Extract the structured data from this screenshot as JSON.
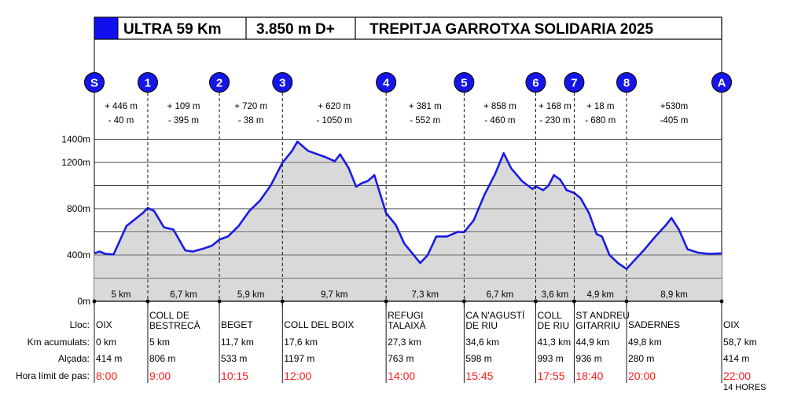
{
  "title_bar": {
    "race": "ULTRA 59 Km",
    "elevation": "3.850 m D+",
    "event": "TREPITJA GARROTXA SOLIDARIA  2025",
    "swatch_color": "#0f0ff0"
  },
  "chart_data": {
    "type": "area",
    "ylabel_ticks": [
      "1400m",
      "1200m",
      "800m",
      "400m",
      "0m"
    ],
    "ylim": [
      0,
      1400
    ],
    "xlim": [
      0,
      58.7
    ],
    "line_color": "#1a1ae6",
    "fill_color": "#d9d9d9",
    "profile": [
      [
        0,
        414
      ],
      [
        0.5,
        430
      ],
      [
        1.0,
        410
      ],
      [
        1.8,
        405
      ],
      [
        3.0,
        650
      ],
      [
        4.5,
        760
      ],
      [
        5.0,
        806
      ],
      [
        5.6,
        780
      ],
      [
        6.5,
        640
      ],
      [
        7.4,
        620
      ],
      [
        8.5,
        440
      ],
      [
        9.2,
        430
      ],
      [
        10.2,
        455
      ],
      [
        11.0,
        480
      ],
      [
        11.7,
        533
      ],
      [
        12.5,
        560
      ],
      [
        13.5,
        650
      ],
      [
        14.5,
        780
      ],
      [
        15.5,
        870
      ],
      [
        16.5,
        1000
      ],
      [
        17.6,
        1197
      ],
      [
        18.5,
        1300
      ],
      [
        19.0,
        1380
      ],
      [
        20.0,
        1300
      ],
      [
        21.5,
        1250
      ],
      [
        22.5,
        1210
      ],
      [
        23.0,
        1270
      ],
      [
        23.8,
        1150
      ],
      [
        24.5,
        990
      ],
      [
        25.0,
        1020
      ],
      [
        25.6,
        1040
      ],
      [
        26.2,
        1090
      ],
      [
        27.3,
        763
      ],
      [
        28.2,
        660
      ],
      [
        29.0,
        500
      ],
      [
        30.5,
        330
      ],
      [
        31.2,
        400
      ],
      [
        32.0,
        560
      ],
      [
        33.0,
        560
      ],
      [
        34.0,
        600
      ],
      [
        34.6,
        598
      ],
      [
        35.5,
        700
      ],
      [
        36.5,
        920
      ],
      [
        37.5,
        1100
      ],
      [
        38.3,
        1280
      ],
      [
        39.0,
        1150
      ],
      [
        40.0,
        1040
      ],
      [
        41.0,
        970
      ],
      [
        41.3,
        993
      ],
      [
        42.0,
        960
      ],
      [
        42.5,
        1000
      ],
      [
        43.0,
        1090
      ],
      [
        43.6,
        1050
      ],
      [
        44.2,
        960
      ],
      [
        44.9,
        936
      ],
      [
        45.5,
        890
      ],
      [
        46.3,
        760
      ],
      [
        47.0,
        580
      ],
      [
        47.5,
        560
      ],
      [
        48.2,
        400
      ],
      [
        49.0,
        330
      ],
      [
        49.8,
        280
      ],
      [
        50.5,
        350
      ],
      [
        51.5,
        450
      ],
      [
        52.5,
        560
      ],
      [
        53.5,
        660
      ],
      [
        54.0,
        720
      ],
      [
        54.7,
        620
      ],
      [
        55.5,
        450
      ],
      [
        56.5,
        420
      ],
      [
        57.5,
        410
      ],
      [
        58.7,
        414
      ]
    ],
    "checkpoints": [
      {
        "label": "S",
        "km": 0
      },
      {
        "label": "1",
        "km": 5
      },
      {
        "label": "2",
        "km": 11.7
      },
      {
        "label": "3",
        "km": 17.6
      },
      {
        "label": "4",
        "km": 27.3
      },
      {
        "label": "5",
        "km": 34.6
      },
      {
        "label": "6",
        "km": 41.3
      },
      {
        "label": "7",
        "km": 44.9
      },
      {
        "label": "8",
        "km": 49.8
      },
      {
        "label": "A",
        "km": 58.7
      }
    ],
    "segments": [
      {
        "distance": "5 km",
        "gain": "+ 446 m",
        "loss": "- 40 m"
      },
      {
        "distance": "6,7 km",
        "gain": "+ 109 m",
        "loss": "- 395 m"
      },
      {
        "distance": "5,9 km",
        "gain": "+ 720 m",
        "loss": "- 38 m"
      },
      {
        "distance": "9,7 km",
        "gain": "+ 620 m",
        "loss": "- 1050  m"
      },
      {
        "distance": "7,3 km",
        "gain": "+ 381 m",
        "loss": "- 552 m"
      },
      {
        "distance": "6,7 km",
        "gain": "+ 858 m",
        "loss": "-  460 m"
      },
      {
        "distance": "3,6 km",
        "gain": "+ 168 m",
        "loss": "- 230 m"
      },
      {
        "distance": "4,9 km",
        "gain": "+ 18 m",
        "loss": "- 680 m"
      },
      {
        "distance": "8,9 km",
        "gain": "+530m",
        "loss": "-405 m"
      }
    ],
    "row_labels": {
      "place": "Lloc:",
      "km": "Km acumulats:",
      "altitude": "Alçada:",
      "time": "Hora límit de pas:"
    },
    "stations": [
      {
        "place": [
          "OIX"
        ],
        "km": "0 km",
        "altitude": "414 m",
        "time": "8:00"
      },
      {
        "place": [
          "COLL DE",
          "BESTRECÀ"
        ],
        "km": "5 km",
        "altitude": "806 m",
        "time": "9:00"
      },
      {
        "place": [
          "BEGET"
        ],
        "km": "11,7 km",
        "altitude": "533 m",
        "time": "10:15"
      },
      {
        "place": [
          "COLL DEL BOIX"
        ],
        "km": "17,6 km",
        "altitude": "1197 m",
        "time": "12:00"
      },
      {
        "place": [
          "REFUGI",
          "TALAIXÀ"
        ],
        "km": "27,3 km",
        "altitude": "763 m",
        "time": "14:00"
      },
      {
        "place": [
          "CA N'AGUSTÍ",
          "DE RIU"
        ],
        "km": "34,6 km",
        "altitude": "598 m",
        "time": "15:45"
      },
      {
        "place": [
          "COLL",
          "DE RIU"
        ],
        "km": "41,3 km",
        "altitude": "993 m",
        "time": "17:55"
      },
      {
        "place": [
          "ST ANDREU",
          "GITARRIU"
        ],
        "km": "44,9 km",
        "altitude": "936 m",
        "time": "18:40"
      },
      {
        "place": [
          "SADERNES"
        ],
        "km": "49,8 km",
        "altitude": "280 m",
        "time": "20:00"
      },
      {
        "place": [
          "OIX"
        ],
        "km": "58,7 km",
        "altitude": "414 m",
        "time": "22:00"
      }
    ],
    "total_time_note": "14 HORES"
  }
}
